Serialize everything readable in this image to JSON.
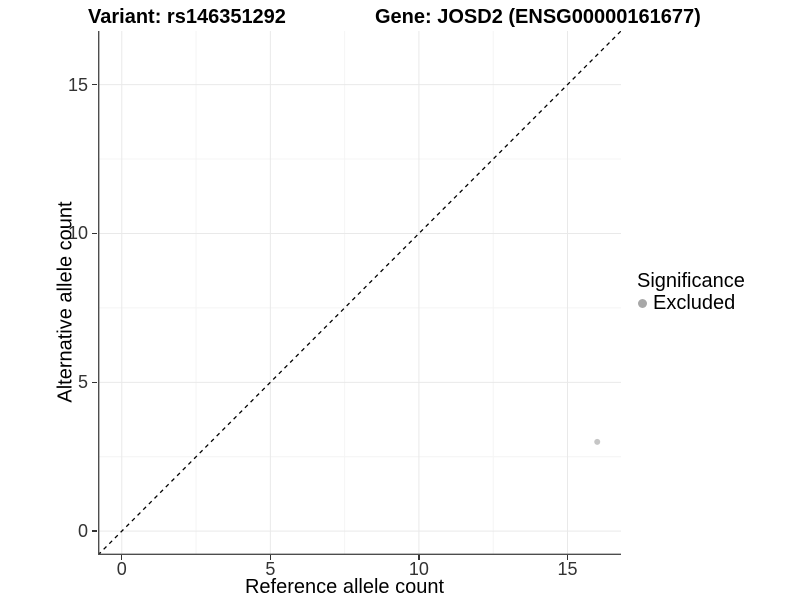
{
  "header": {
    "variant_title": "Variant: rs146351292",
    "gene_title": "Gene: JOSD2 (ENSG00000161677)"
  },
  "legend": {
    "title": "Significance",
    "items": [
      {
        "label": "Excluded",
        "color": "#a8a8a8"
      }
    ]
  },
  "chart_data": {
    "type": "scatter",
    "title": "Variant: rs146351292 — Gene: JOSD2 (ENSG00000161677)",
    "xlabel": "Reference allele count",
    "ylabel": "Alternative allele count",
    "xlim": [
      -0.8,
      16.8
    ],
    "ylim": [
      -0.8,
      16.8
    ],
    "x_major_ticks": [
      0,
      5,
      10,
      15
    ],
    "y_major_ticks": [
      0,
      5,
      10,
      15
    ],
    "x_minor_ticks": [
      2.5,
      7.5,
      12.5
    ],
    "y_minor_ticks": [
      2.5,
      7.5,
      12.5
    ],
    "grid": "major+minor",
    "legend_position": "right",
    "series": [
      {
        "name": "Excluded",
        "color": "#c6c6c6",
        "points": [
          {
            "x": 16,
            "y": 3
          }
        ]
      }
    ],
    "reference_line": {
      "type": "identity",
      "slope": 1,
      "intercept": 0,
      "style": "dashed",
      "color": "#000000"
    }
  },
  "colors": {
    "background": "#ffffff",
    "grid_major": "#e9e9e9",
    "grid_minor": "#f4f4f4",
    "axis_line": "#4d4d4d",
    "tick_mark": "#333333",
    "tick_text": "#333333",
    "title_text": "#000000"
  }
}
